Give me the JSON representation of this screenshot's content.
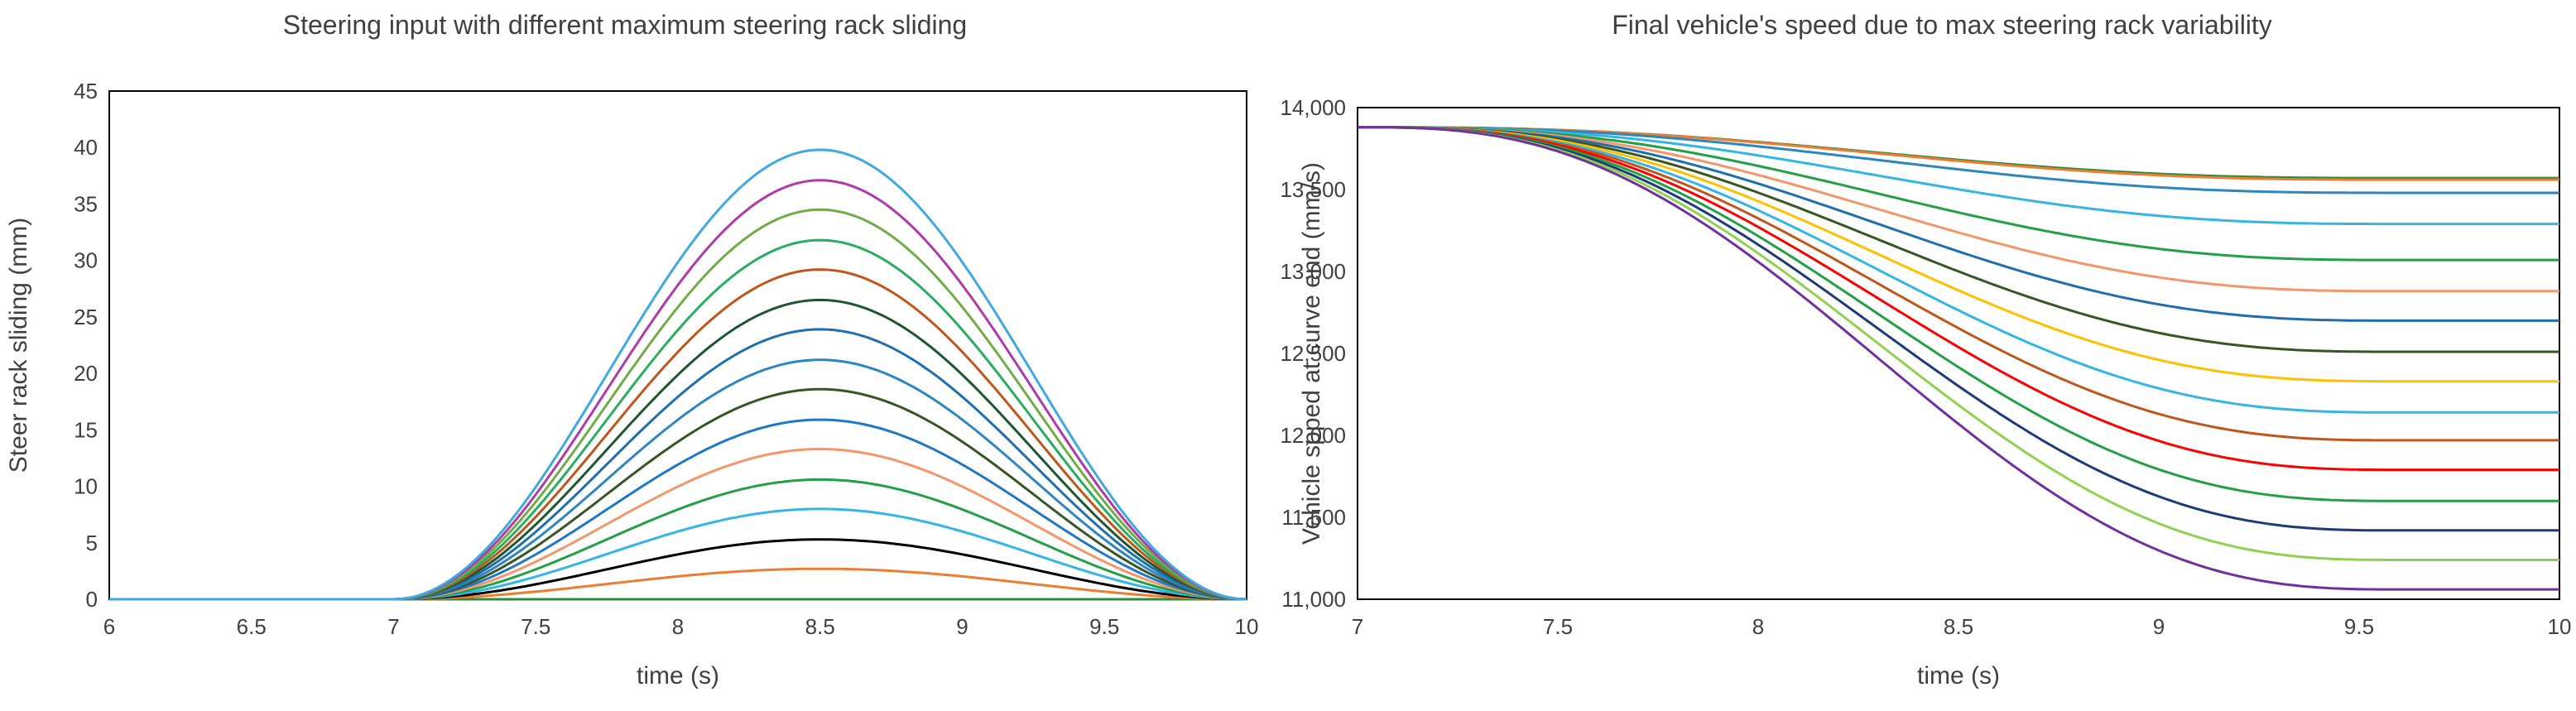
{
  "chart_data": [
    {
      "type": "line",
      "title": "Steering input with different maximum steering rack sliding",
      "xlabel": "time (s)",
      "ylabel": "Steer rack sliding (mm)",
      "xlim": [
        6,
        10
      ],
      "ylim": [
        0,
        45
      ],
      "x_ticks": [
        "6",
        "6.5",
        "7",
        "7.5",
        "8",
        "8.5",
        "9",
        "9.5",
        "10"
      ],
      "y_ticks": [
        "0",
        "5",
        "10",
        "15",
        "20",
        "25",
        "30",
        "35",
        "40",
        "45"
      ],
      "grid": false,
      "legend": "none",
      "curve": {
        "start_x": 7,
        "peak_x": 8.5,
        "end_x": 10,
        "shape": "1-cos bump, zero elsewhere"
      },
      "series": [
        {
          "peak": 0,
          "color": "#2e8b3e"
        },
        {
          "peak": 2.7,
          "color": "#ed7d31"
        },
        {
          "peak": 5.3,
          "color": "#000000"
        },
        {
          "peak": 8.0,
          "color": "#33b5e5"
        },
        {
          "peak": 10.6,
          "color": "#22a045"
        },
        {
          "peak": 13.3,
          "color": "#f4956a"
        },
        {
          "peak": 15.9,
          "color": "#1f77c8"
        },
        {
          "peak": 18.6,
          "color": "#375623"
        },
        {
          "peak": 21.2,
          "color": "#2e86c1"
        },
        {
          "peak": 23.9,
          "color": "#1f6fb0"
        },
        {
          "peak": 26.5,
          "color": "#1e5631"
        },
        {
          "peak": 29.2,
          "color": "#c0561b"
        },
        {
          "peak": 31.8,
          "color": "#27ae60"
        },
        {
          "peak": 34.5,
          "color": "#70ad47"
        },
        {
          "peak": 37.1,
          "color": "#b03aa8"
        },
        {
          "peak": 39.8,
          "color": "#3fa9e0"
        }
      ]
    },
    {
      "type": "line",
      "title": "Final vehicle's speed due to max steering rack variability",
      "xlabel": "time (s)",
      "ylabel": "Vehicle spped at curve end (mm/s)",
      "xlim": [
        7,
        10
      ],
      "ylim": [
        11000,
        14000
      ],
      "x_ticks": [
        "7",
        "7.5",
        "8",
        "8.5",
        "9",
        "9.5",
        "10"
      ],
      "y_ticks": [
        "11,000",
        "11,500",
        "12,000",
        "12,500",
        "13,000",
        "13,500",
        "14,000"
      ],
      "grid": false,
      "legend": "none",
      "start_value": 13880,
      "curve": {
        "start_x": 7,
        "end_x": 9.6,
        "shape": "smooth decline then flat to 10"
      },
      "series": [
        {
          "final": 13570,
          "color": "#2e8b3e"
        },
        {
          "final": 13560,
          "color": "#ed7d31"
        },
        {
          "final": 13480,
          "color": "#2e86c1"
        },
        {
          "final": 13290,
          "color": "#33b5e5"
        },
        {
          "final": 13070,
          "color": "#22a045"
        },
        {
          "final": 12880,
          "color": "#f4956a"
        },
        {
          "final": 12700,
          "color": "#1f6fb0"
        },
        {
          "final": 12510,
          "color": "#375623"
        },
        {
          "final": 12330,
          "color": "#ffc000"
        },
        {
          "final": 12140,
          "color": "#33b5e5"
        },
        {
          "final": 11970,
          "color": "#c0561b"
        },
        {
          "final": 11790,
          "color": "#ff0000"
        },
        {
          "final": 11600,
          "color": "#22a045"
        },
        {
          "final": 11420,
          "color": "#1f3a78"
        },
        {
          "final": 11240,
          "color": "#92d050"
        },
        {
          "final": 11060,
          "color": "#7030a0"
        }
      ]
    }
  ]
}
